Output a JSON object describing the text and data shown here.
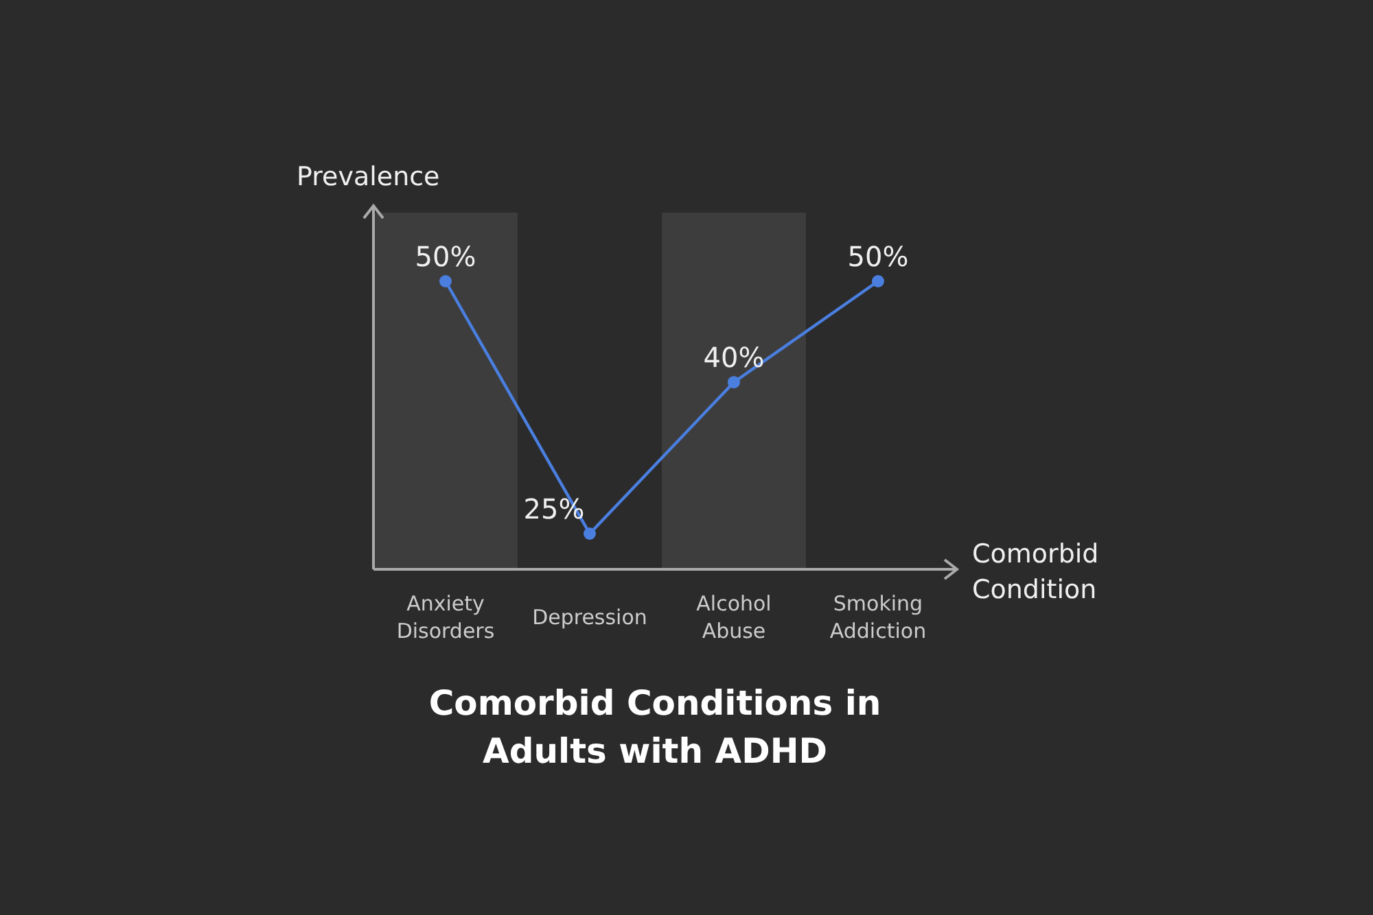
{
  "chart_data": {
    "type": "line",
    "title": "Comorbid Conditions in Adults with ADHD",
    "xlabel": "Comorbid Condition",
    "ylabel": "Prevalence",
    "categories": [
      "Anxiety Disorders",
      "Depression",
      "Alcohol Abuse",
      "Smoking Addiction"
    ],
    "series": [
      {
        "color": "#4a7fe0",
        "values": [
          50,
          25,
          40,
          50
        ],
        "value_labels": [
          "50%",
          "25%",
          "40%",
          "50%"
        ]
      }
    ],
    "tick_labels": "x",
    "marker": "circle",
    "line_style": "solid",
    "bands": [
      {
        "axis": "x",
        "from": "Anxiety Disorders",
        "to": "Anxiety Disorders",
        "color": "#3d3d3d"
      },
      {
        "axis": "x",
        "from": "Alcohol Abuse",
        "to": "Alcohol Abuse",
        "color": "#3d3d3d"
      }
    ]
  }
}
